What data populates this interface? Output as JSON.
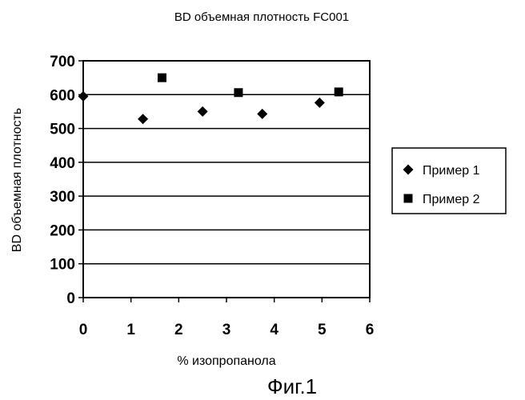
{
  "chart_data": {
    "type": "scatter",
    "title": "BD объемная плотность FC001",
    "xlabel": "% изопропанола",
    "ylabel": "BD объемная плотность",
    "xlim": [
      0,
      6
    ],
    "ylim": [
      0,
      700
    ],
    "x_ticks": [
      "0",
      "1",
      "2",
      "3",
      "4",
      "5",
      "6"
    ],
    "y_ticks": [
      "0",
      "100",
      "200",
      "300",
      "400",
      "500",
      "600",
      "700"
    ],
    "grid": "horizontal",
    "legend_position": "right",
    "series": [
      {
        "name": "Пример 1",
        "marker": "diamond",
        "points": [
          [
            0,
            595
          ],
          [
            1.25,
            528
          ],
          [
            2.5,
            550
          ],
          [
            3.75,
            543
          ],
          [
            4.95,
            576
          ]
        ]
      },
      {
        "name": "Пример 2",
        "marker": "square",
        "points": [
          [
            1.65,
            650
          ],
          [
            3.25,
            606
          ],
          [
            5.35,
            608
          ]
        ]
      }
    ]
  },
  "caption": "Фиг.1",
  "colors": {
    "ink": "#000000",
    "background": "#ffffff"
  }
}
